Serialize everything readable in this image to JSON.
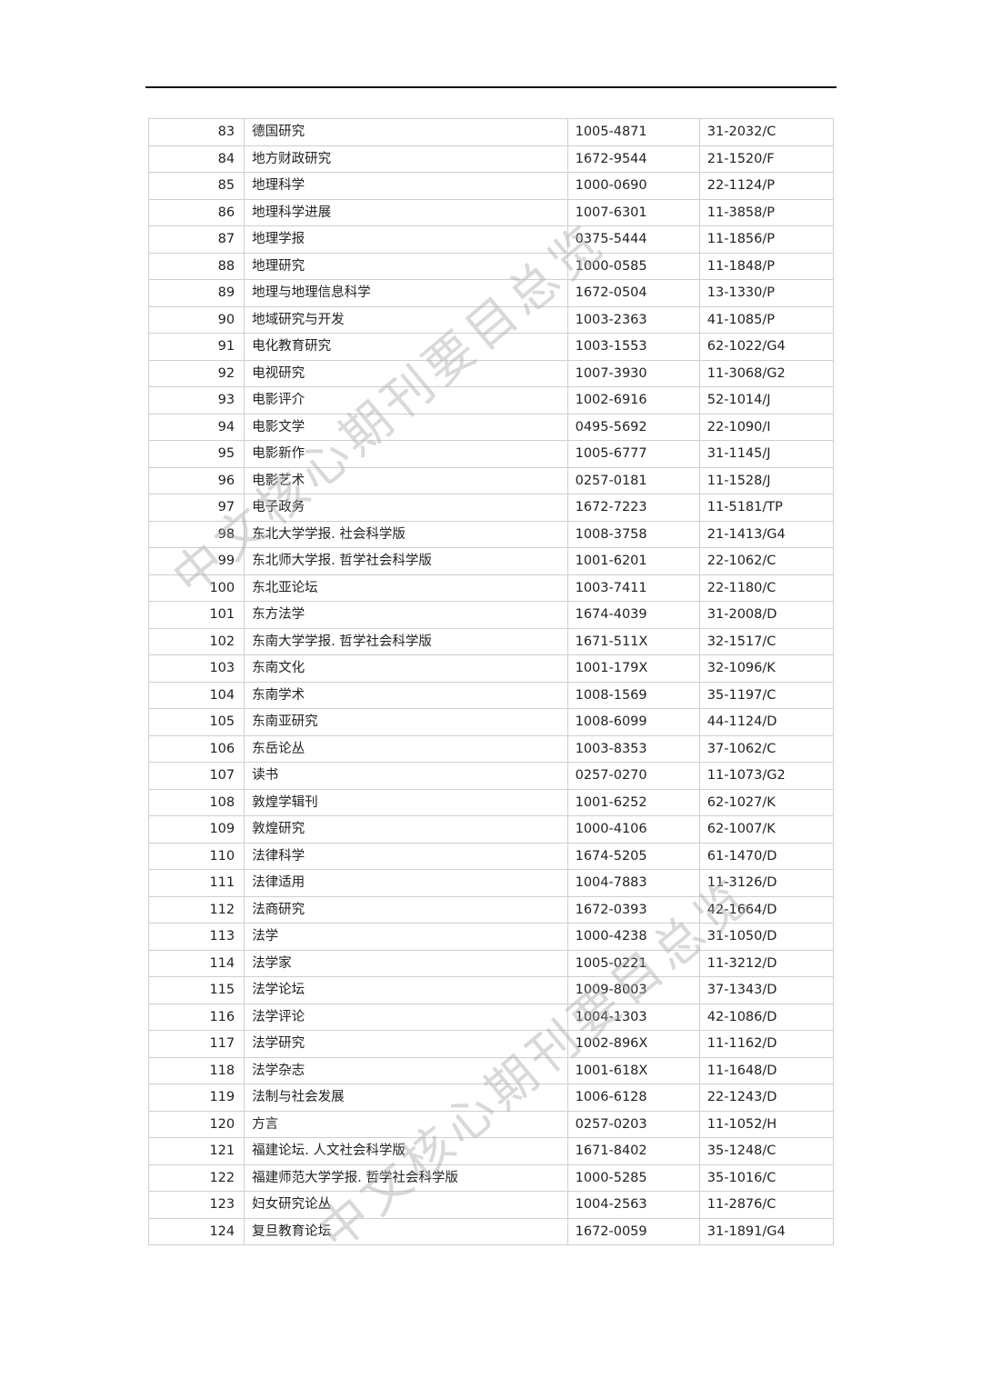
{
  "watermark": "中文核心期刊要目总览",
  "rows": [
    [
      "83",
      "德国研究",
      "1005-4871",
      "31-2032/C"
    ],
    [
      "84",
      "地方财政研究",
      "1672-9544",
      "21-1520/F"
    ],
    [
      "85",
      "地理科学",
      "1000-0690",
      "22-1124/P"
    ],
    [
      "86",
      "地理科学进展",
      "1007-6301",
      "11-3858/P"
    ],
    [
      "87",
      "地理学报",
      "0375-5444",
      "11-1856/P"
    ],
    [
      "88",
      "地理研究",
      "1000-0585",
      "11-1848/P"
    ],
    [
      "89",
      "地理与地理信息科学",
      "1672-0504",
      "13-1330/P"
    ],
    [
      "90",
      "地域研究与开发",
      "1003-2363",
      "41-1085/P"
    ],
    [
      "91",
      "电化教育研究",
      "1003-1553",
      "62-1022/G4"
    ],
    [
      "92",
      "电视研究",
      "1007-3930",
      "11-3068/G2"
    ],
    [
      "93",
      "电影评介",
      "1002-6916",
      "52-1014/J"
    ],
    [
      "94",
      "电影文学",
      "0495-5692",
      "22-1090/I"
    ],
    [
      "95",
      "电影新作",
      "1005-6777",
      "31-1145/J"
    ],
    [
      "96",
      "电影艺术",
      "0257-0181",
      "11-1528/J"
    ],
    [
      "97",
      "电子政务",
      "1672-7223",
      "11-5181/TP"
    ],
    [
      "98",
      "东北大学学报. 社会科学版",
      "1008-3758",
      "21-1413/G4"
    ],
    [
      "99",
      "东北师大学报. 哲学社会科学版",
      "1001-6201",
      "22-1062/C"
    ],
    [
      "100",
      "东北亚论坛",
      "1003-7411",
      "22-1180/C"
    ],
    [
      "101",
      "东方法学",
      "1674-4039",
      "31-2008/D"
    ],
    [
      "102",
      "东南大学学报. 哲学社会科学版",
      "1671-511X",
      "32-1517/C"
    ],
    [
      "103",
      "东南文化",
      "1001-179X",
      "32-1096/K"
    ],
    [
      "104",
      "东南学术",
      "1008-1569",
      "35-1197/C"
    ],
    [
      "105",
      "东南亚研究",
      "1008-6099",
      "44-1124/D"
    ],
    [
      "106",
      "东岳论丛",
      "1003-8353",
      "37-1062/C"
    ],
    [
      "107",
      "读书",
      "0257-0270",
      "11-1073/G2"
    ],
    [
      "108",
      "敦煌学辑刊",
      "1001-6252",
      "62-1027/K"
    ],
    [
      "109",
      "敦煌研究",
      "1000-4106",
      "62-1007/K"
    ],
    [
      "110",
      "法律科学",
      "1674-5205",
      "61-1470/D"
    ],
    [
      "111",
      "法律适用",
      "1004-7883",
      "11-3126/D"
    ],
    [
      "112",
      "法商研究",
      "1672-0393",
      "42-1664/D"
    ],
    [
      "113",
      "法学",
      "1000-4238",
      "31-1050/D"
    ],
    [
      "114",
      "法学家",
      "1005-0221",
      "11-3212/D"
    ],
    [
      "115",
      "法学论坛",
      "1009-8003",
      "37-1343/D"
    ],
    [
      "116",
      "法学评论",
      "1004-1303",
      "42-1086/D"
    ],
    [
      "117",
      "法学研究",
      "1002-896X",
      "11-1162/D"
    ],
    [
      "118",
      "法学杂志",
      "1001-618X",
      "11-1648/D"
    ],
    [
      "119",
      "法制与社会发展",
      "1006-6128",
      "22-1243/D"
    ],
    [
      "120",
      "方言",
      "0257-0203",
      "11-1052/H"
    ],
    [
      "121",
      "福建论坛. 人文社会科学版",
      "1671-8402",
      "35-1248/C"
    ],
    [
      "122",
      "福建师范大学学报. 哲学社会科学版",
      "1000-5285",
      "35-1016/C"
    ],
    [
      "123",
      "妇女研究论丛",
      "1004-2563",
      "11-2876/C"
    ],
    [
      "124",
      "复旦教育论坛",
      "1672-0059",
      "31-1891/G4"
    ]
  ]
}
